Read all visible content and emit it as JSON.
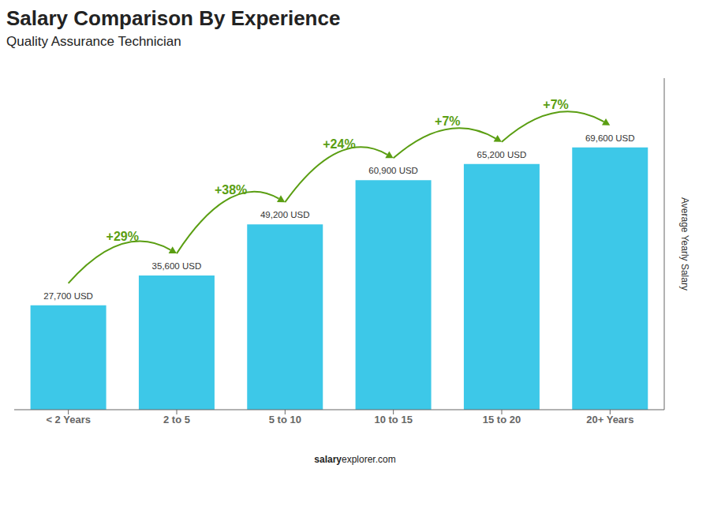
{
  "chart_data": {
    "type": "bar",
    "title": "Salary Comparison By Experience",
    "subtitle": "Quality Assurance Technician",
    "categories": [
      "< 2 Years",
      "2 to 5",
      "5 to 10",
      "10 to 15",
      "15 to 20",
      "20+ Years"
    ],
    "values": [
      27700,
      35600,
      49200,
      60900,
      65200,
      69600
    ],
    "value_labels": [
      "27,700 USD",
      "35,600 USD",
      "49,200 USD",
      "60,900 USD",
      "65,200 USD",
      "69,600 USD"
    ],
    "data_labels": true,
    "annotations": [
      "+29%",
      "+38%",
      "+24%",
      "+7%",
      "+7%"
    ],
    "ylabel": "Average Yearly Salary",
    "footer": [
      "salary",
      "explorer.com"
    ],
    "color": "#3DC8E8",
    "ylim": [
      0,
      88000
    ],
    "grid": false,
    "tick_labels": "x"
  }
}
